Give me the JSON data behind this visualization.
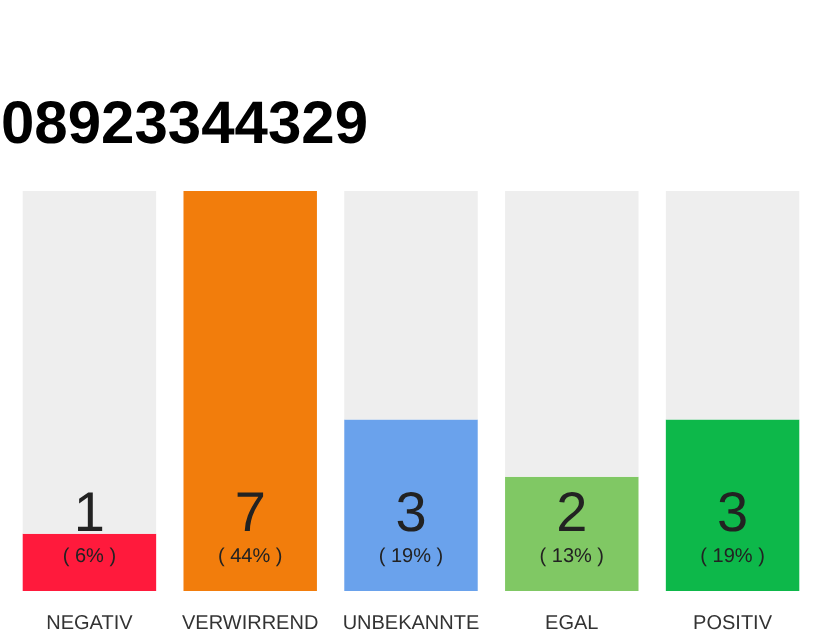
{
  "chart_data": {
    "type": "bar",
    "title": "08923344329",
    "categories": [
      "NEGATIV",
      "VERWIRREND",
      "UNBEKANNTE",
      "EGAL",
      "POSITIV"
    ],
    "stacked": true,
    "series": [
      {
        "colors": [
          "#ff1a3c",
          "#f27d0c",
          "#6aa2ec",
          "#80c864",
          "#0db84a"
        ],
        "values": [
          1,
          7,
          3,
          2,
          3
        ],
        "value_labels": [
          "1",
          "7",
          "3",
          "2",
          "3"
        ]
      },
      {
        "color": "#eeeeee",
        "values": [
          6,
          0,
          4,
          5,
          4
        ]
      }
    ],
    "ylim": [
      0,
      7
    ],
    "tick_labels": "x",
    "grid": false,
    "annotations": [
      "( 6% )",
      "( 44% )",
      "( 19% )",
      "( 13% )",
      "( 19% )"
    ]
  }
}
